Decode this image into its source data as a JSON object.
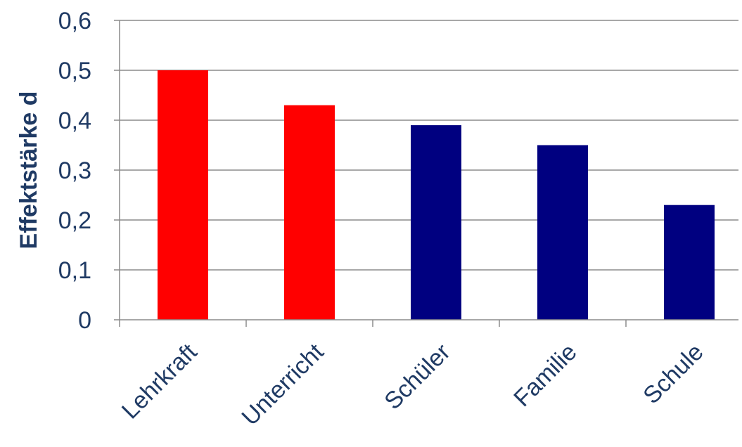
{
  "chart_data": {
    "type": "bar",
    "categories": [
      "Lehrkraft",
      "Unterricht",
      "Schüler",
      "Familie",
      "Schule"
    ],
    "values": [
      0.5,
      0.43,
      0.39,
      0.35,
      0.23
    ],
    "bar_colors": [
      "#ff0000",
      "#ff0000",
      "#000080",
      "#000080",
      "#000080"
    ],
    "ylabel": "Effektstärke d",
    "xlabel": "",
    "ylim": [
      0,
      0.6
    ],
    "yticks": [
      {
        "value": 0.0,
        "label": "0"
      },
      {
        "value": 0.1,
        "label": "0,1"
      },
      {
        "value": 0.2,
        "label": "0,2"
      },
      {
        "value": 0.3,
        "label": "0,3"
      },
      {
        "value": 0.4,
        "label": "0,4"
      },
      {
        "value": 0.5,
        "label": "0,5"
      },
      {
        "value": 0.6,
        "label": "0,6"
      }
    ],
    "grid": true,
    "legend": "none"
  },
  "colors": {
    "axis_text": "#1f3a64",
    "gridline": "#8c8c8c"
  }
}
